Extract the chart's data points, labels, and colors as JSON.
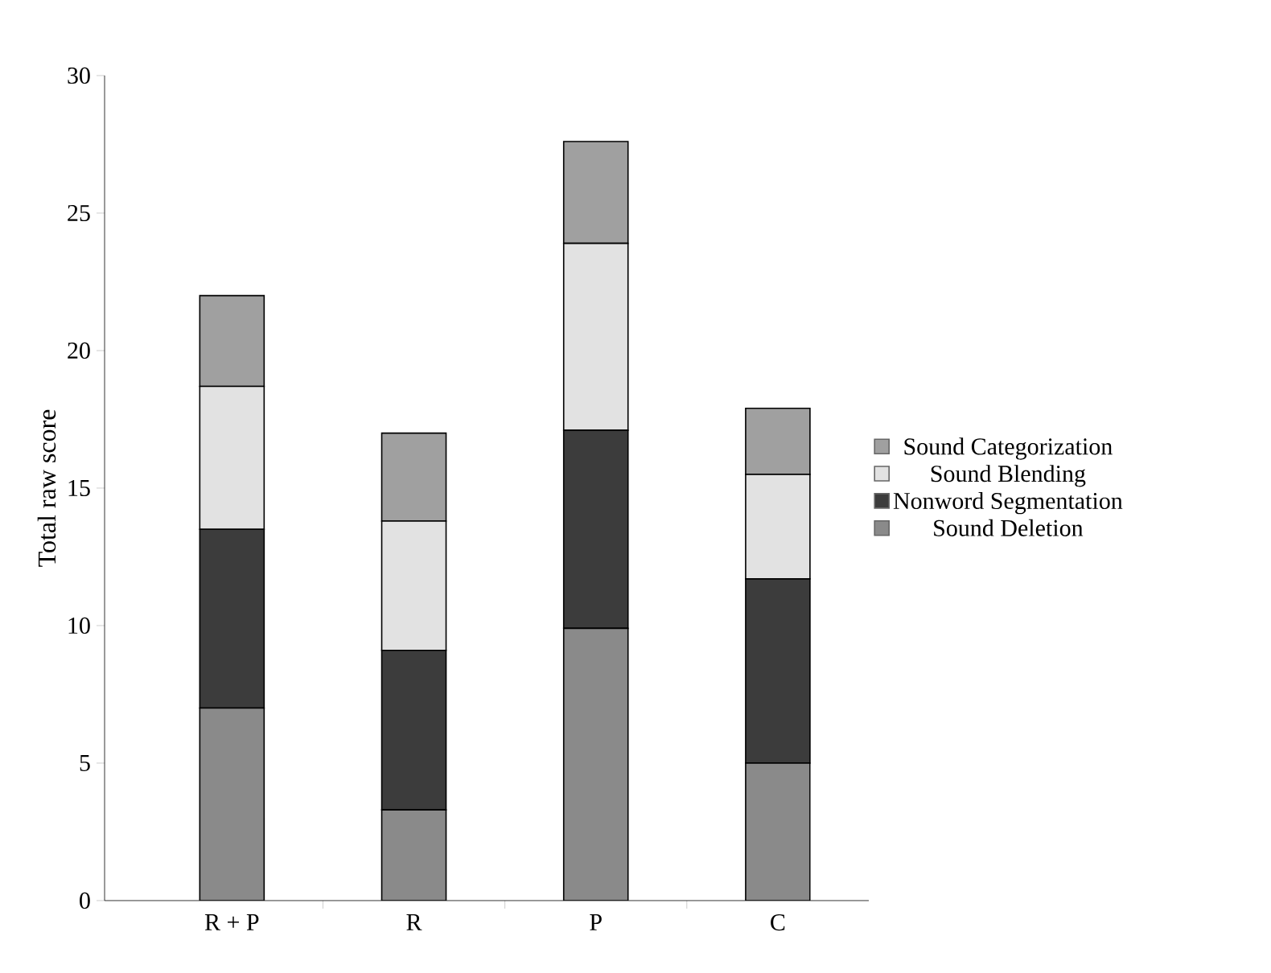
{
  "chart_data": {
    "type": "bar",
    "stacked": true,
    "ylabel": "Total raw score",
    "categories": [
      "R + P",
      "R",
      "P",
      "C"
    ],
    "series": [
      {
        "name": "Sound Deletion",
        "color": "#8a8a8a",
        "values": [
          7,
          3.3,
          9.9,
          5
        ]
      },
      {
        "name": "Nonword Segmentation",
        "color": "#3c3c3c",
        "values": [
          6.5,
          5.8,
          7.2,
          6.7
        ]
      },
      {
        "name": "Sound Blending",
        "color": "#e2e2e2",
        "values": [
          5.2,
          4.7,
          6.8,
          3.8
        ]
      },
      {
        "name": "Sound Categorization",
        "color": "#a0a0a0",
        "values": [
          3.3,
          3.2,
          3.7,
          2.4
        ]
      }
    ],
    "ylim": [
      0,
      30
    ],
    "yticks": [
      0,
      5,
      10,
      15,
      20,
      25,
      30
    ],
    "legend": "right",
    "grid": false
  }
}
